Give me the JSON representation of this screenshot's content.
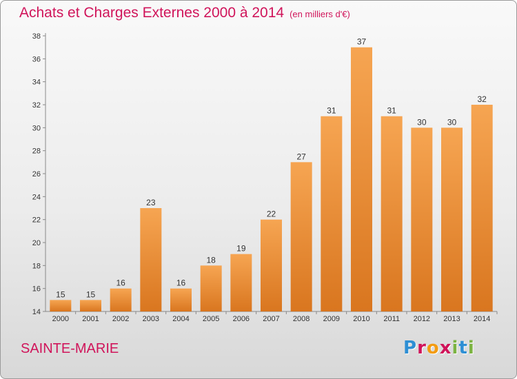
{
  "header": {
    "title": "Achats et Charges Externes 2000 à 2014",
    "subtitle": "(en milliers d'€)"
  },
  "footer": {
    "commune": "SAINTE-MARIE",
    "logo_letters": [
      {
        "char": "P",
        "color": "#2e8fd4"
      },
      {
        "char": "r",
        "color": "#d0145a"
      },
      {
        "char": "o",
        "color": "#f39c12"
      },
      {
        "char": "x",
        "color": "#d0145a"
      },
      {
        "char": "i",
        "color": "#7cb342"
      },
      {
        "char": "t",
        "color": "#2e8fd4"
      },
      {
        "char": "i",
        "color": "#7cb342"
      }
    ]
  },
  "chart_data": {
    "type": "bar",
    "title": "Achats et Charges Externes 2000 à 2014",
    "subtitle": "(en milliers d'€)",
    "xlabel": "",
    "ylabel": "",
    "categories": [
      "2000",
      "2001",
      "2002",
      "2003",
      "2004",
      "2005",
      "2006",
      "2007",
      "2008",
      "2009",
      "2010",
      "2011",
      "2012",
      "2013",
      "2014"
    ],
    "values": [
      15,
      15,
      16,
      23,
      16,
      18,
      19,
      22,
      27,
      31,
      37,
      31,
      30,
      30,
      32
    ],
    "ylim": [
      14,
      38
    ],
    "yticks": [
      14,
      16,
      18,
      20,
      22,
      24,
      26,
      28,
      30,
      32,
      34,
      36,
      38
    ],
    "grid": false,
    "bar_color": "#f0913a",
    "data_labels": true
  }
}
